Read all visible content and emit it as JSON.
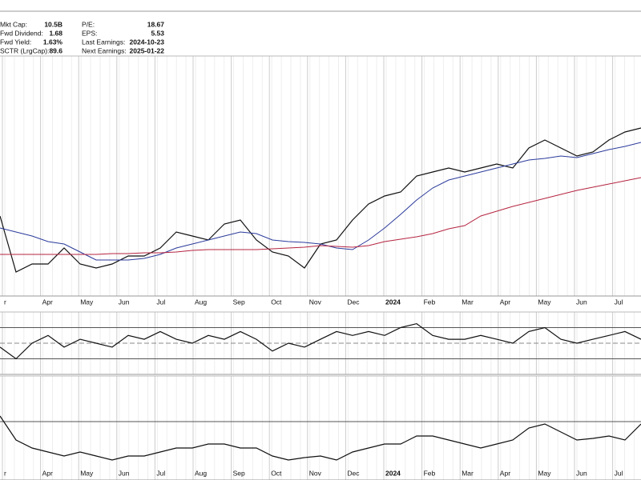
{
  "header": {
    "stats_left": [
      {
        "label": "Mkt Cap:",
        "value": "10.5B"
      },
      {
        "label": "Fwd Dividend:",
        "value": "1.68"
      },
      {
        "label": "Fwd Yield:",
        "value": "1.63%"
      },
      {
        "label": "SCTR (LrgCap):",
        "value": "89.6"
      }
    ],
    "stats_right": [
      {
        "label": "P/E:",
        "value": "18.67"
      },
      {
        "label": "EPS:",
        "value": "5.53"
      },
      {
        "label": "Last Earnings:",
        "value": "2024-10-23"
      },
      {
        "label": "Next Earnings:",
        "value": "2025-01-22"
      }
    ]
  },
  "months": [
    "r",
    "Apr",
    "May",
    "Jun",
    "Jul",
    "Aug",
    "Sep",
    "Oct",
    "Nov",
    "Dec",
    "2024",
    "Feb",
    "Mar",
    "Apr",
    "May",
    "Jun",
    "Jul"
  ],
  "chart_data": [
    {
      "type": "line",
      "ylim": [
        0,
        300
      ],
      "series": [
        {
          "color": "#111111",
          "values": [
            100,
            30,
            40,
            40,
            60,
            40,
            35,
            40,
            50,
            50,
            60,
            80,
            75,
            70,
            90,
            95,
            70,
            55,
            50,
            35,
            65,
            70,
            95,
            115,
            125,
            130,
            150,
            155,
            160,
            155,
            160,
            165,
            160,
            185,
            195,
            185,
            175,
            180,
            195,
            205,
            210
          ]
        },
        {
          "color": "#2b3b9c",
          "values": [
            85,
            80,
            75,
            68,
            65,
            55,
            45,
            45,
            45,
            47,
            52,
            60,
            65,
            70,
            75,
            80,
            78,
            70,
            68,
            67,
            65,
            60,
            58,
            70,
            85,
            102,
            120,
            135,
            145,
            150,
            155,
            160,
            165,
            170,
            172,
            175,
            173,
            178,
            183,
            187,
            192
          ]
        },
        {
          "color": "#b52440",
          "values": [
            52,
            52,
            52,
            52,
            52,
            52,
            52,
            53,
            53,
            54,
            54,
            55,
            57,
            58,
            58,
            58,
            58,
            59,
            60,
            61,
            63,
            62,
            61,
            63,
            68,
            71,
            74,
            78,
            84,
            88,
            100,
            106,
            112,
            117,
            122,
            127,
            132,
            136,
            140,
            144,
            148
          ]
        }
      ]
    },
    {
      "type": "line",
      "ylim": [
        10,
        90
      ],
      "yticks": [
        30,
        50,
        70
      ],
      "series": [
        {
          "color": "#111111",
          "values": [
            45,
            30,
            50,
            60,
            45,
            55,
            50,
            45,
            60,
            55,
            65,
            55,
            50,
            60,
            55,
            65,
            55,
            40,
            50,
            45,
            55,
            65,
            60,
            65,
            60,
            70,
            75,
            60,
            55,
            55,
            60,
            55,
            50,
            65,
            70,
            55,
            50,
            55,
            60,
            65,
            55
          ]
        }
      ]
    },
    {
      "type": "line",
      "ylim": [
        0,
        130
      ],
      "yticks": [
        73
      ],
      "series": [
        {
          "color": "#111111",
          "values": [
            80,
            50,
            40,
            35,
            30,
            35,
            30,
            25,
            30,
            30,
            35,
            40,
            40,
            45,
            45,
            40,
            40,
            30,
            25,
            28,
            30,
            25,
            35,
            40,
            45,
            45,
            55,
            55,
            50,
            45,
            40,
            45,
            50,
            65,
            70,
            60,
            50,
            52,
            55,
            50,
            70
          ]
        }
      ]
    }
  ]
}
